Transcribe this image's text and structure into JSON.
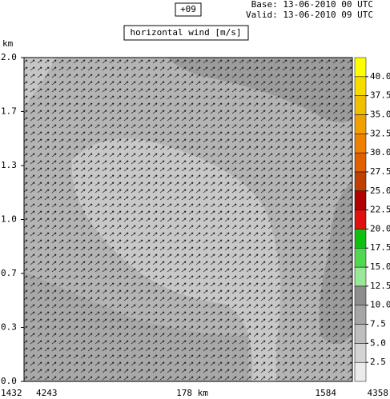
{
  "chart_data": {
    "type": "contour",
    "forecast": "+09",
    "base": "Base: 13-06-2010  00 UTC",
    "valid": "Valid: 13-06-2010  09 UTC",
    "title": "horizontal wind [m/s]",
    "y_label": "km",
    "ylim": [
      0,
      2
    ],
    "yticks": [
      {
        "value": 0,
        "label": "0.0"
      },
      {
        "value": 0.333,
        "label": "0.3"
      },
      {
        "value": 0.667,
        "label": "0.7"
      },
      {
        "value": 1,
        "label": "1.0"
      },
      {
        "value": 1.333,
        "label": "1.3"
      },
      {
        "value": 1.667,
        "label": "1.7"
      },
      {
        "value": 2,
        "label": "2.0"
      }
    ],
    "x_labels": [
      "1432",
      "4243",
      "178 km",
      "1584",
      "4358"
    ],
    "levels": [
      0,
      2.5,
      5,
      7.5,
      10,
      12.5,
      15,
      17.5,
      20,
      22.5,
      25,
      27.5,
      30,
      32.5,
      35,
      37.5,
      40,
      42.5
    ],
    "colors": [
      "#ebebeb",
      "#d4d4d4",
      "#bebebe",
      "#a6a6a6",
      "#8e8e8e",
      "#98e898",
      "#50d850",
      "#10c010",
      "#e01010",
      "#b00000",
      "#c04000",
      "#e06000",
      "#f08000",
      "#f0a000",
      "#f0c000",
      "#f8dc00",
      "#ffff00"
    ],
    "cticks": [
      2.5,
      {
        "value": 5,
        "label": "5.0"
      },
      7.5,
      {
        "value": 10,
        "label": "10.0"
      },
      12.5,
      {
        "value": 15,
        "label": "15.0"
      },
      17.5,
      {
        "value": 20,
        "label": "20.0"
      },
      22.5,
      {
        "value": 25,
        "label": "25.0"
      },
      27.5,
      {
        "value": 30,
        "label": "30.0"
      },
      32.5,
      {
        "value": 35,
        "label": "35.0"
      },
      37.5,
      {
        "value": 40,
        "label": "40.0"
      }
    ]
  }
}
